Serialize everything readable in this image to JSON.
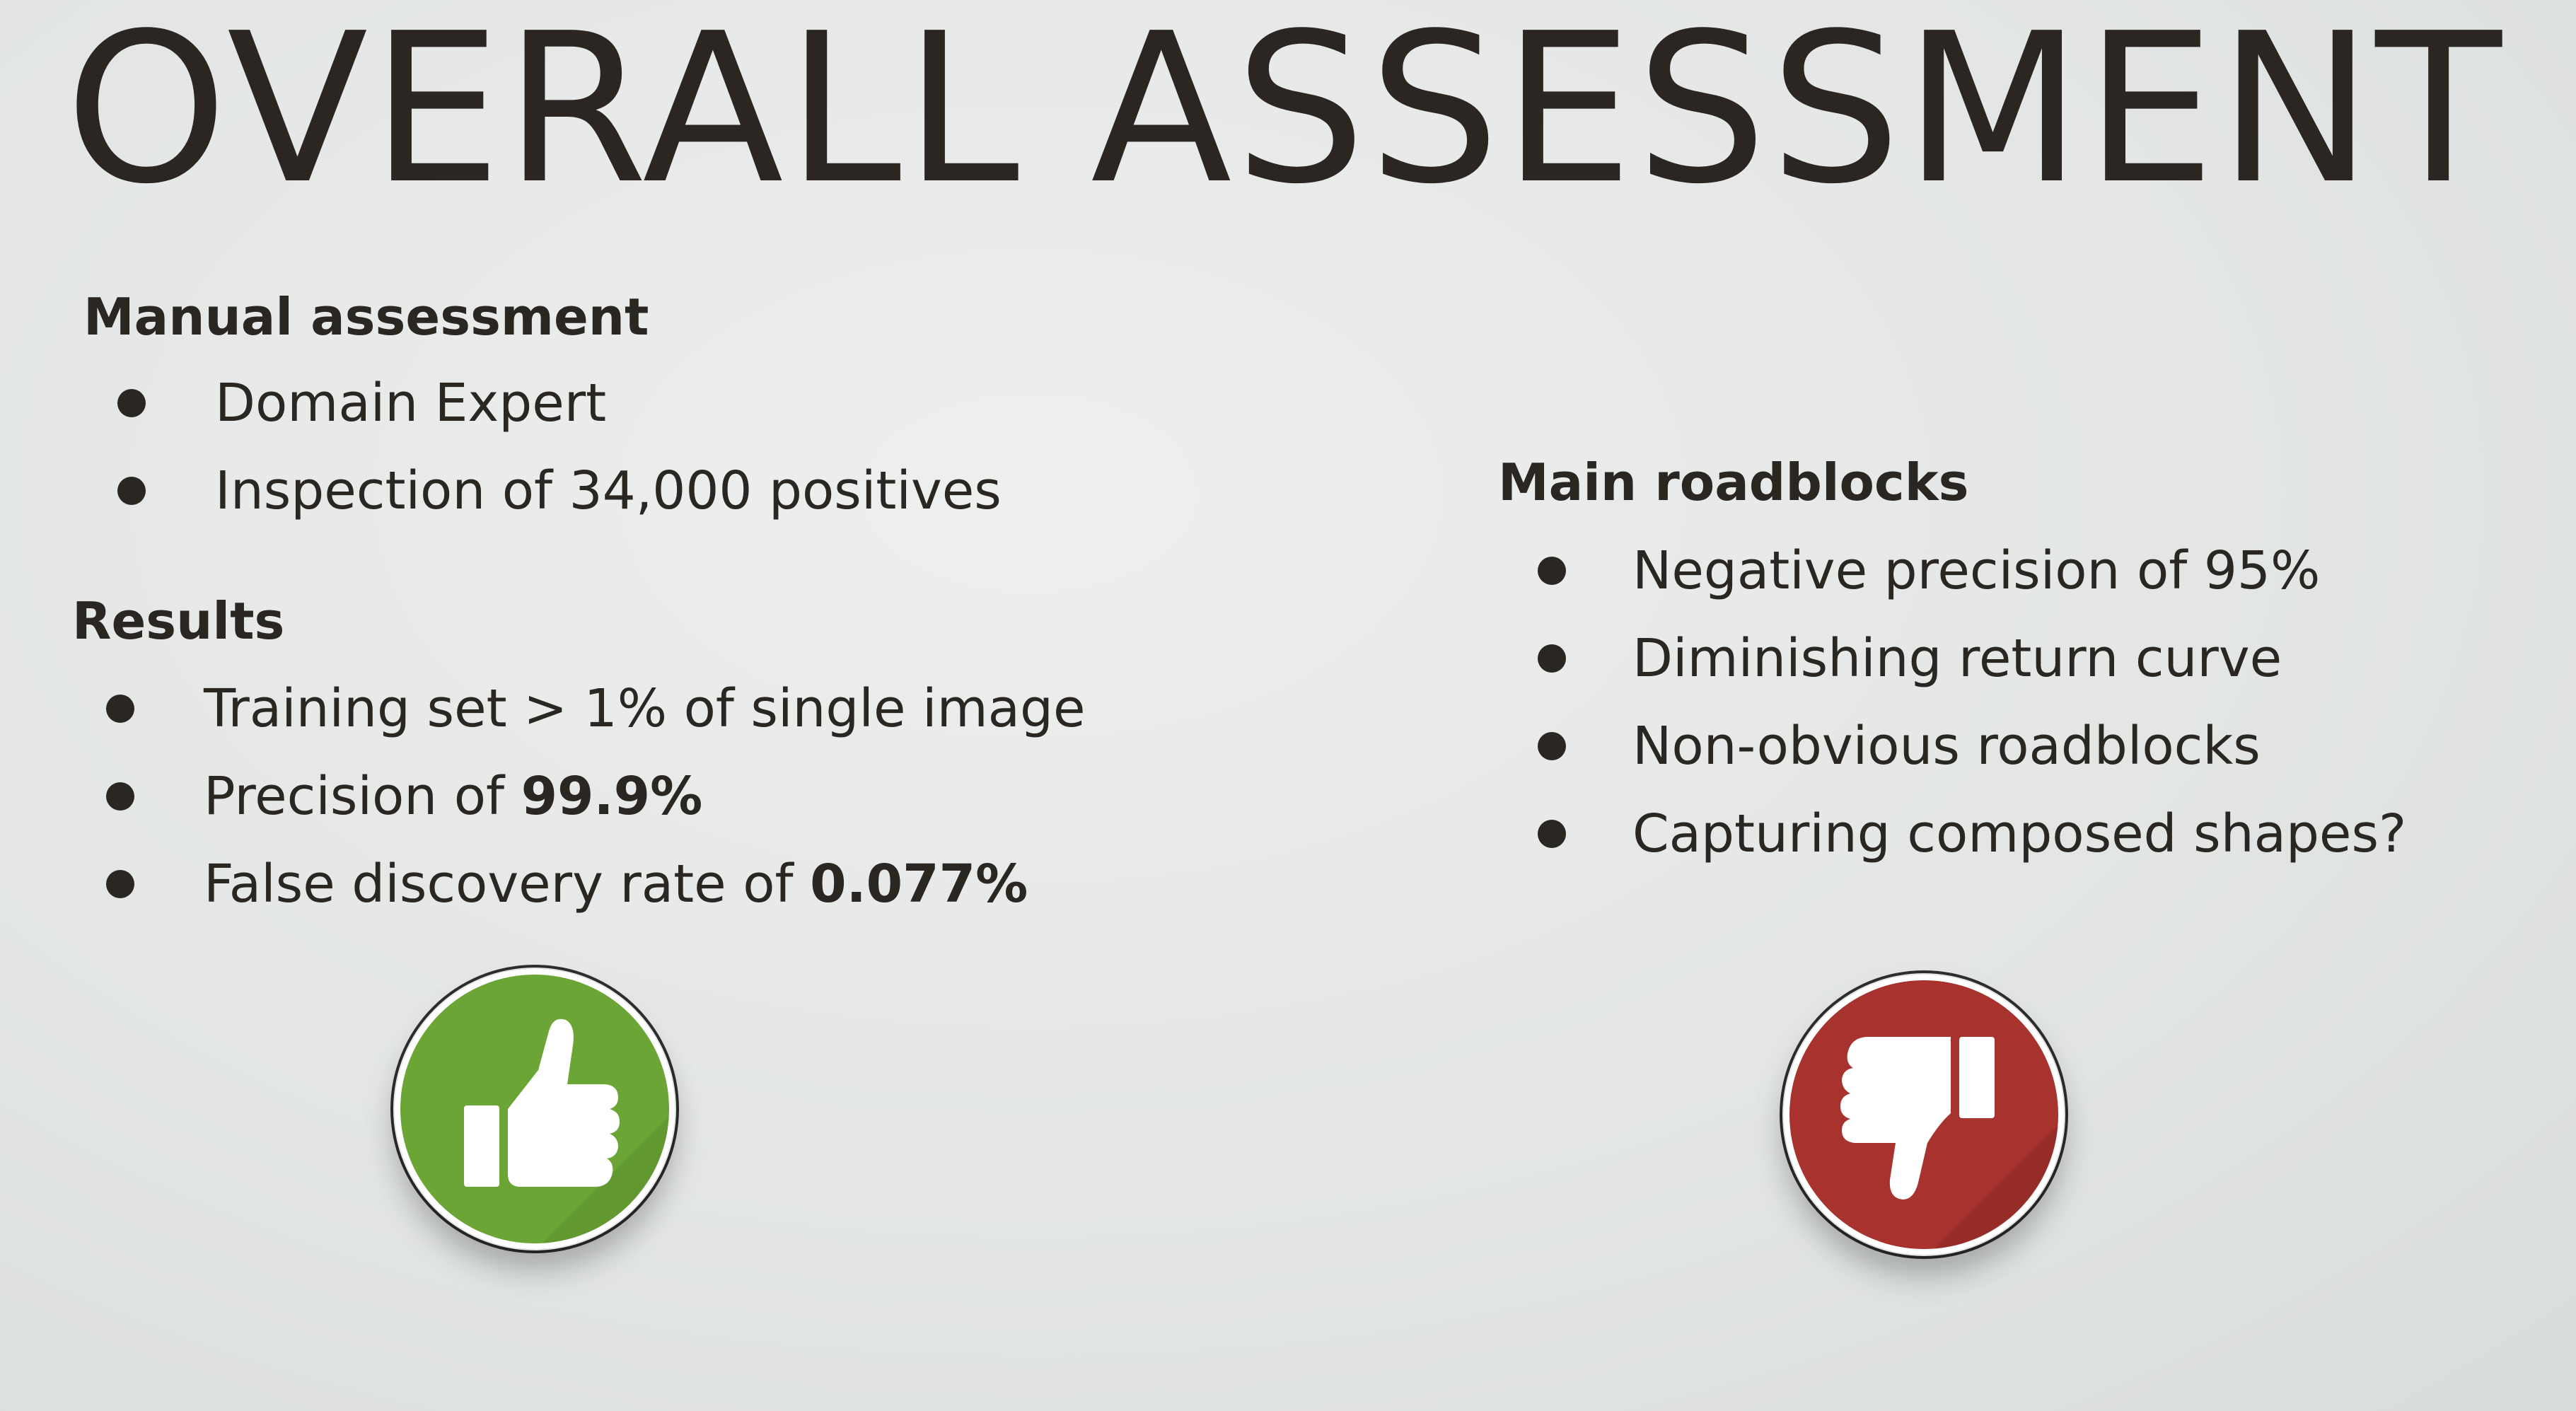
{
  "title": "OVERALL ASSESSMENT",
  "left": {
    "manual": {
      "heading": "Manual assessment",
      "items": [
        "Domain Expert",
        "Inspection of 34,000 positives"
      ]
    },
    "results": {
      "heading": "Results",
      "items": [
        {
          "text": "Training set > 1% of single image",
          "emphasis": ""
        },
        {
          "text": "Precision of ",
          "emphasis": "99.9%"
        },
        {
          "text": "False discovery rate of ",
          "emphasis": "0.077%"
        }
      ]
    }
  },
  "right": {
    "roadblocks": {
      "heading": "Main roadblocks",
      "items": [
        "Negative precision of 95%",
        "Diminishing return curve",
        "Non-obvious roadblocks",
        "Capturing composed shapes?"
      ]
    }
  },
  "icons": {
    "positive": {
      "name": "thumbs-up-icon",
      "color": "#6aa535"
    },
    "negative": {
      "name": "thumbs-down-icon",
      "color": "#a8322d"
    }
  }
}
